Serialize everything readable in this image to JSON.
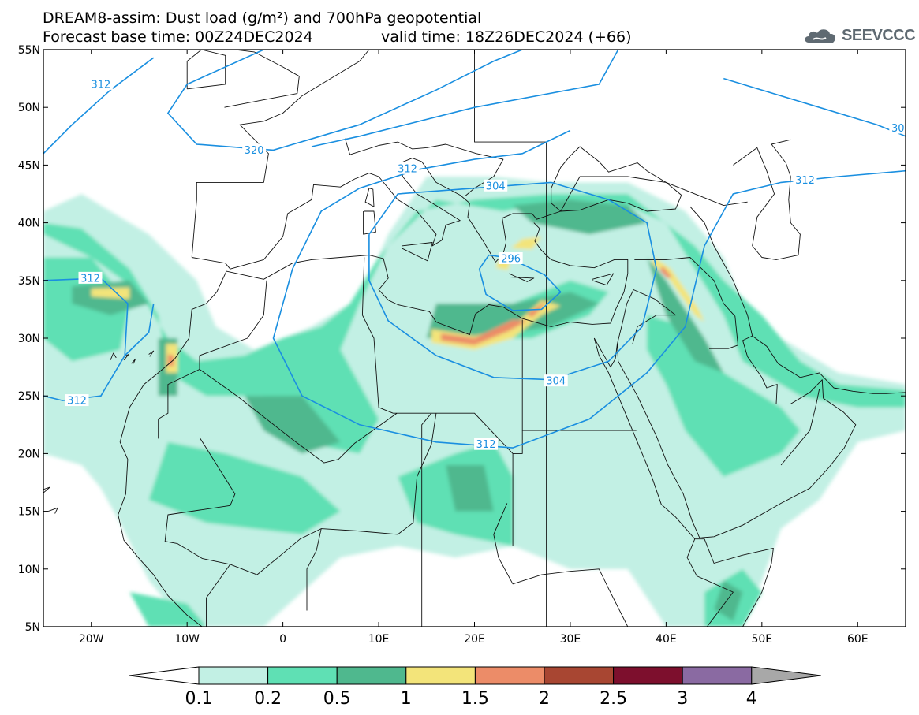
{
  "title": {
    "line1": "DREAM8-assim: Dust load (g/m²) and 700hPa geopotential",
    "base": "Forecast base time: 00Z24DEC2024",
    "valid": "valid time: 18Z26DEC2024 (+66)"
  },
  "logo": {
    "text": "SEEVCCC",
    "icon": "cloud-logo-icon",
    "color": "#5f6a72"
  },
  "map": {
    "lon_range": [
      -25,
      65
    ],
    "lat_range": [
      5,
      55
    ],
    "lat_ticks": [
      "55N",
      "50N",
      "45N",
      "40N",
      "35N",
      "30N",
      "25N",
      "20N",
      "15N",
      "10N",
      "5N"
    ],
    "lon_ticks": [
      "20W",
      "10W",
      "0",
      "10E",
      "20E",
      "30E",
      "40E",
      "50E",
      "60E"
    ],
    "contour_color": "#1a8fe0",
    "contour_labels": [
      {
        "text": "312",
        "lon": -19,
        "lat": 52
      },
      {
        "text": "320",
        "lon": -3,
        "lat": 46.3
      },
      {
        "text": "312",
        "lon": 13,
        "lat": 44.7
      },
      {
        "text": "304",
        "lon": 22.2,
        "lat": 43.2
      },
      {
        "text": "296",
        "lon": 23.8,
        "lat": 36.9
      },
      {
        "text": "312",
        "lon": 54.5,
        "lat": 43.7
      },
      {
        "text": "312",
        "lon": -20.1,
        "lat": 35.2
      },
      {
        "text": "312",
        "lon": -21.5,
        "lat": 24.6
      },
      {
        "text": "304",
        "lon": 28.5,
        "lat": 26.3
      },
      {
        "text": "312",
        "lon": 21.2,
        "lat": 20.8
      },
      {
        "text": "30",
        "lon": 64.2,
        "lat": 48.2
      }
    ]
  },
  "legend": {
    "labels": [
      "0.1",
      "0.2",
      "0.5",
      "1",
      "1.5",
      "2",
      "2.5",
      "3",
      "4"
    ],
    "colors": [
      "#c2f0e4",
      "#5fe0b4",
      "#4fb88e",
      "#f3e47a",
      "#ec8c68",
      "#a84632",
      "#7d0f2d",
      "#8a6aa2",
      "#a8a8a8"
    ],
    "low_end_color": "#ffffff"
  }
}
